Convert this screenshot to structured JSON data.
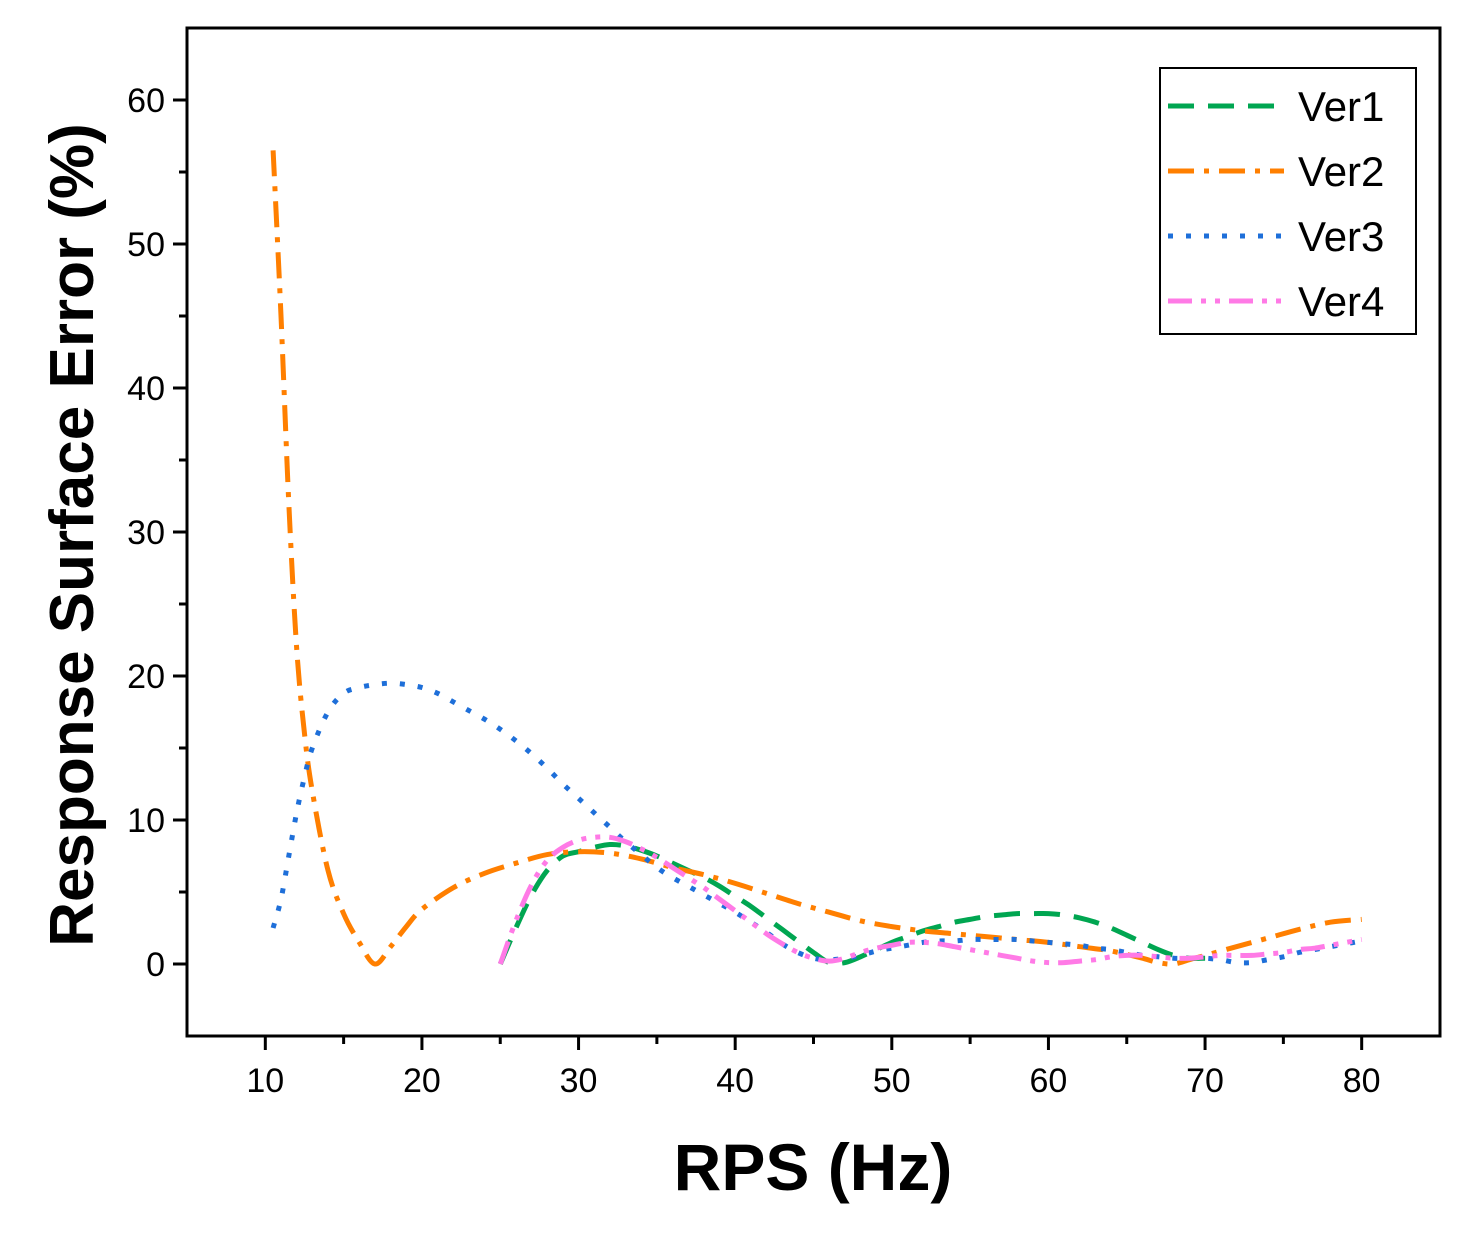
{
  "chart_data": {
    "type": "line",
    "title": "",
    "xlabel": "RPS (Hz)",
    "ylabel": "Response Surface Error (%)",
    "xlim": [
      5,
      85
    ],
    "ylim": [
      -5,
      65
    ],
    "xticks": [
      10,
      20,
      30,
      40,
      50,
      60,
      70,
      80
    ],
    "yticks": [
      0,
      10,
      20,
      30,
      40,
      50,
      60
    ],
    "grid": false,
    "legend_position": "top-right",
    "series": [
      {
        "name": "Ver1",
        "color": "#00A651",
        "dash": "dash",
        "x": [
          25,
          26,
          27,
          28,
          29,
          30,
          31,
          32,
          33,
          34,
          35,
          36,
          37,
          38,
          39,
          40,
          41,
          42,
          43,
          44,
          45,
          46,
          47,
          48,
          49,
          50,
          51,
          52,
          53,
          54,
          55,
          56,
          57,
          58,
          59,
          60,
          61,
          62,
          63,
          64,
          65,
          66,
          67,
          68,
          69,
          70
        ],
        "y": [
          0,
          2.5,
          4.8,
          6.5,
          7.5,
          7.8,
          8.1,
          8.3,
          8.2,
          7.9,
          7.5,
          7.0,
          6.5,
          6.0,
          5.4,
          4.7,
          4.0,
          3.2,
          2.4,
          1.6,
          0.8,
          0.1,
          0.1,
          0.5,
          1.0,
          1.5,
          1.9,
          2.3,
          2.6,
          2.9,
          3.1,
          3.3,
          3.4,
          3.5,
          3.5,
          3.5,
          3.4,
          3.2,
          2.9,
          2.5,
          2.0,
          1.5,
          1.0,
          0.6,
          0.4,
          0.4
        ]
      },
      {
        "name": "Ver2",
        "color": "#FF7F00",
        "dash": "dashdot",
        "x": [
          10.5,
          11,
          11.5,
          12,
          12.5,
          13,
          14,
          15,
          16,
          17,
          18,
          19,
          20,
          22,
          24,
          26,
          28,
          30,
          32,
          34,
          36,
          38,
          40,
          42,
          44,
          46,
          48,
          50,
          52,
          54,
          56,
          58,
          60,
          62,
          64,
          66,
          67,
          68,
          69,
          70,
          72,
          74,
          76,
          78,
          80
        ],
        "y": [
          56.5,
          45,
          32,
          22,
          16,
          12,
          6.5,
          3.5,
          1.5,
          0,
          1.2,
          2.6,
          3.8,
          5.3,
          6.3,
          7.0,
          7.6,
          7.8,
          7.7,
          7.3,
          6.7,
          6.2,
          5.6,
          4.9,
          4.2,
          3.6,
          3.0,
          2.6,
          2.3,
          2.1,
          1.9,
          1.7,
          1.5,
          1.2,
          0.9,
          0.4,
          0.1,
          0.0,
          0.3,
          0.6,
          1.2,
          1.8,
          2.4,
          2.9,
          3.1
        ]
      },
      {
        "name": "Ver3",
        "color": "#1E6FD9",
        "dash": "dot",
        "x": [
          10.5,
          11,
          11.5,
          12,
          12.5,
          13,
          14,
          15,
          16,
          17,
          18,
          19,
          20,
          21,
          22,
          23,
          24,
          25,
          26,
          27,
          28,
          29,
          30,
          31,
          32,
          33,
          34,
          35,
          36,
          37,
          38,
          39,
          40,
          41,
          42,
          43,
          44,
          45,
          46,
          47,
          48,
          49,
          50,
          51,
          52,
          53,
          54,
          55,
          56,
          57,
          58,
          59,
          60,
          61,
          62,
          63,
          64,
          65,
          66,
          67,
          68,
          69,
          70,
          71,
          72,
          73,
          74,
          75,
          76,
          77,
          78,
          79,
          80
        ],
        "y": [
          2.5,
          4.5,
          7.5,
          10.5,
          13,
          15,
          17.5,
          18.8,
          19.2,
          19.4,
          19.5,
          19.4,
          19.2,
          18.8,
          18.2,
          17.6,
          17.0,
          16.3,
          15.5,
          14.6,
          13.6,
          12.5,
          11.5,
          10.5,
          9.5,
          8.5,
          7.6,
          6.7,
          6.0,
          5.4,
          4.8,
          4.2,
          3.6,
          2.9,
          2.2,
          1.4,
          0.8,
          0.4,
          0.3,
          0.4,
          0.6,
          0.9,
          1.1,
          1.3,
          1.5,
          1.6,
          1.6,
          1.7,
          1.7,
          1.7,
          1.7,
          1.6,
          1.5,
          1.4,
          1.3,
          1.1,
          1.0,
          0.8,
          0.6,
          0.5,
          0.4,
          0.4,
          0.4,
          0.3,
          0.1,
          0.1,
          0.3,
          0.5,
          0.8,
          1.0,
          1.2,
          1.4,
          1.6
        ]
      },
      {
        "name": "Ver4",
        "color": "#FF7AE6",
        "dash": "dashdotdot",
        "x": [
          25,
          26,
          27,
          28,
          29,
          30,
          31,
          32,
          33,
          34,
          35,
          36,
          37,
          38,
          39,
          40,
          41,
          42,
          43,
          44,
          45,
          46,
          47,
          48,
          49,
          50,
          51,
          52,
          53,
          54,
          55,
          56,
          57,
          58,
          59,
          60,
          61,
          62,
          63,
          64,
          65,
          66,
          67,
          68,
          69,
          70,
          71,
          72,
          73,
          74,
          75,
          76,
          77,
          78,
          79,
          80
        ],
        "y": [
          0,
          3.0,
          5.5,
          7.2,
          8.1,
          8.6,
          8.8,
          8.8,
          8.5,
          8.0,
          7.4,
          6.7,
          6.0,
          5.3,
          4.5,
          3.7,
          2.9,
          2.1,
          1.4,
          0.8,
          0.4,
          0.2,
          0.4,
          0.8,
          1.1,
          1.3,
          1.5,
          1.5,
          1.4,
          1.2,
          1.0,
          0.8,
          0.6,
          0.4,
          0.2,
          0.1,
          0.1,
          0.2,
          0.3,
          0.5,
          0.6,
          0.6,
          0.5,
          0.4,
          0.4,
          0.5,
          0.6,
          0.6,
          0.6,
          0.7,
          0.8,
          1.0,
          1.1,
          1.3,
          1.5,
          1.7
        ]
      }
    ]
  }
}
